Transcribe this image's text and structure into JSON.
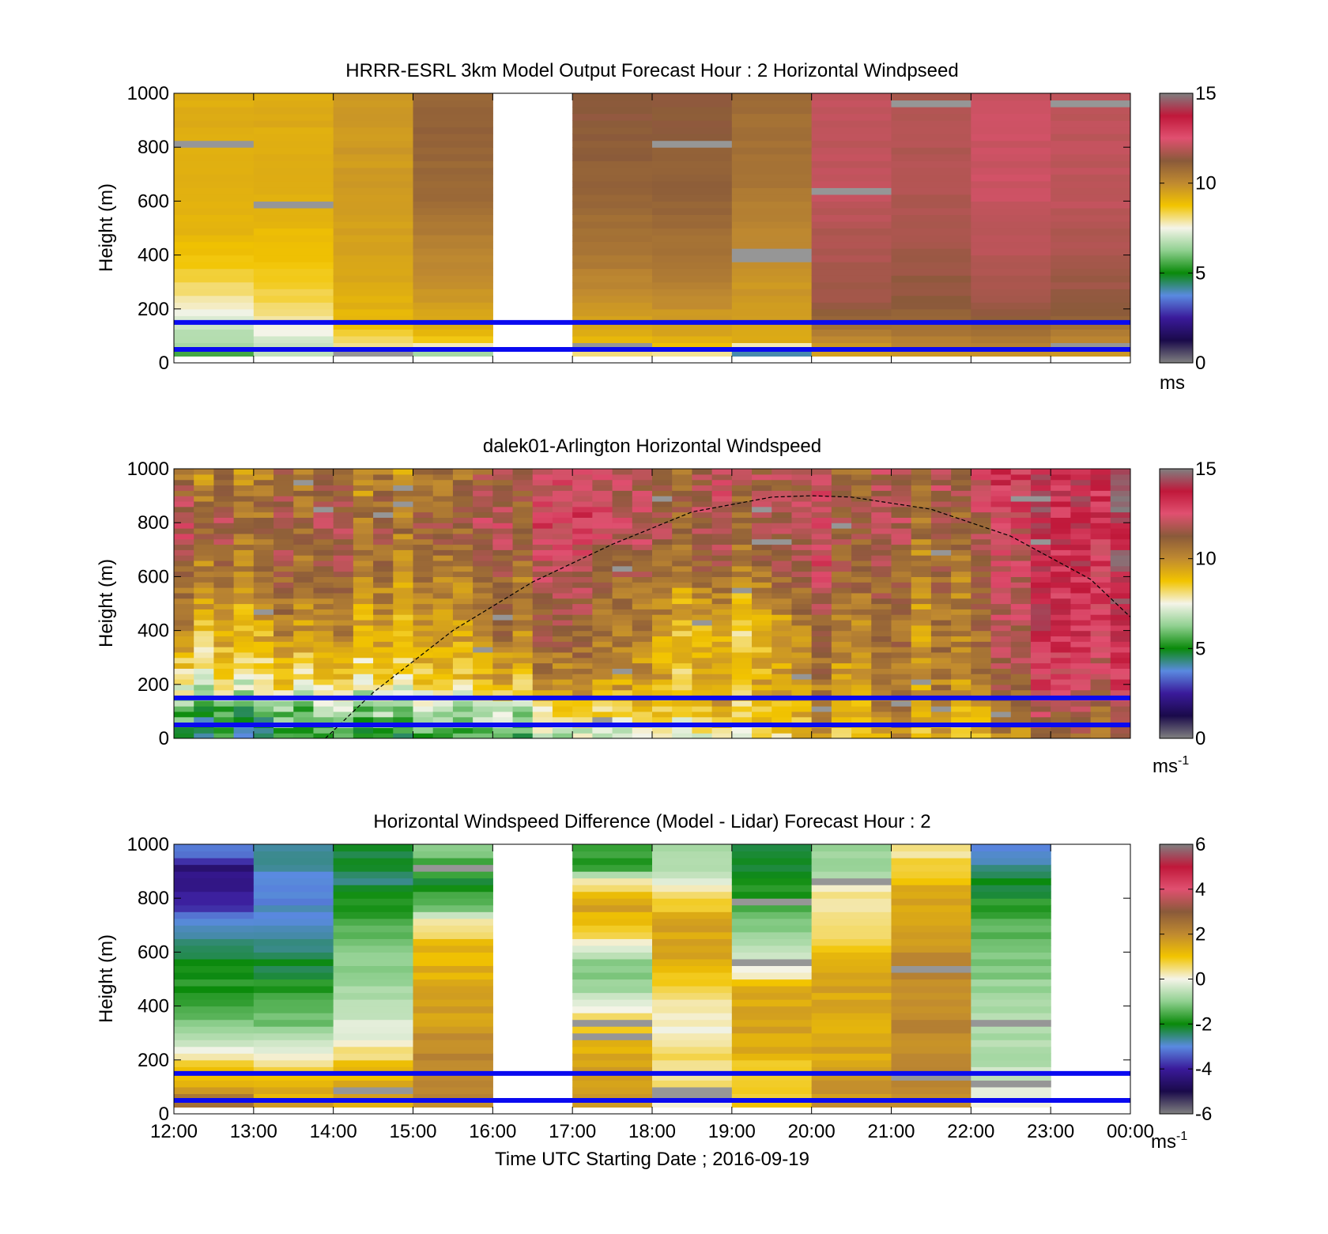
{
  "figure": {
    "xlabel": "Time UTC  Starting Date ; 2016-09-19",
    "x_ticks": [
      "12:00",
      "13:00",
      "14:00",
      "15:00",
      "16:00",
      "17:00",
      "18:00",
      "19:00",
      "20:00",
      "21:00",
      "22:00",
      "23:00",
      "00:00"
    ],
    "ylabel": "Height (m)",
    "y_ticks": [
      "0",
      "200",
      "400",
      "600",
      "800",
      "1000"
    ]
  },
  "chart_data": [
    {
      "type": "heatmap",
      "title": "HRRR-ESRL 3km Model Output   Forecast Hour : 2 Horizontal Windpseed",
      "xlabel": "",
      "ylabel": "Height (m)",
      "x_range": [
        "12:00",
        "00:00"
      ],
      "ylim": [
        0,
        1000
      ],
      "colorbar": {
        "min": 0,
        "max": 15,
        "ticks": [
          "0",
          "5",
          "10",
          "15"
        ],
        "unit": "ms",
        "unit_sup": "",
        "colors": [
          "#808080",
          "#1a0a4a",
          "#3a1a9a",
          "#5a8ae0",
          "#0a8a0a",
          "#90d090",
          "#f4f4e8",
          "#f2c400",
          "#c08a30",
          "#8a5a3a",
          "#e05070",
          "#c0183a",
          "#808080"
        ]
      },
      "hours": [
        "12:00",
        "13:00",
        "14:00",
        "15:00",
        "16:00",
        "17:00",
        "18:00",
        "19:00",
        "20:00",
        "21:00",
        "22:00",
        "23:00"
      ],
      "column_profiles_ms": [
        [
          [
            25,
            5.5
          ],
          [
            50,
            6.5
          ],
          [
            100,
            6.8
          ],
          [
            160,
            7.2
          ],
          [
            210,
            7.8
          ],
          [
            300,
            8.4
          ],
          [
            450,
            9.0
          ],
          [
            700,
            9.2
          ],
          [
            1000,
            9.3
          ]
        ],
        [
          [
            25,
            6.8
          ],
          [
            60,
            7.0
          ],
          [
            120,
            7.6
          ],
          [
            200,
            8.2
          ],
          [
            350,
            8.8
          ],
          [
            600,
            9.2
          ],
          [
            1000,
            9.3
          ]
        ],
        [
          [
            25,
            7.6
          ],
          [
            80,
            8.4
          ],
          [
            150,
            9.0
          ],
          [
            300,
            9.4
          ],
          [
            600,
            9.6
          ],
          [
            1000,
            9.7
          ]
        ],
        [
          [
            25,
            6.5
          ],
          [
            80,
            9.0
          ],
          [
            200,
            9.6
          ],
          [
            400,
            10.2
          ],
          [
            600,
            10.8
          ],
          [
            800,
            11.0
          ],
          [
            1000,
            11.0
          ]
        ],
        null,
        [
          [
            25,
            8.0
          ],
          [
            50,
            9.0
          ],
          [
            150,
            9.4
          ],
          [
            300,
            10.2
          ],
          [
            600,
            11.0
          ],
          [
            1000,
            11.4
          ]
        ],
        [
          [
            25,
            8.0
          ],
          [
            60,
            9.2
          ],
          [
            150,
            9.6
          ],
          [
            300,
            10.4
          ],
          [
            600,
            11.0
          ],
          [
            1000,
            11.3
          ]
        ],
        [
          [
            25,
            4.0
          ],
          [
            60,
            9.2
          ],
          [
            200,
            9.6
          ],
          [
            400,
            10.0
          ],
          [
            700,
            10.6
          ],
          [
            1000,
            10.8
          ]
        ],
        [
          [
            25,
            9.6
          ],
          [
            60,
            9.8
          ],
          [
            200,
            11.5
          ],
          [
            600,
            12.0
          ],
          [
            1000,
            12.0
          ]
        ],
        [
          [
            25,
            9.8
          ],
          [
            60,
            10.2
          ],
          [
            200,
            11.3
          ],
          [
            600,
            11.8
          ],
          [
            1000,
            11.8
          ]
        ],
        [
          [
            25,
            9.8
          ],
          [
            60,
            10.4
          ],
          [
            200,
            11.6
          ],
          [
            600,
            12.2
          ],
          [
            1000,
            12.2
          ]
        ],
        [
          [
            25,
            9.7
          ],
          [
            60,
            10.1
          ],
          [
            200,
            11.4
          ],
          [
            600,
            12.0
          ],
          [
            1000,
            12.0
          ]
        ]
      ],
      "reference_lines_m": [
        150,
        50
      ],
      "reference_line_color": "#0a0af0"
    },
    {
      "type": "heatmap",
      "title": "dalek01-Arlington  Horizontal Windspeed",
      "xlabel": "",
      "ylabel": "Height (m)",
      "x_range": [
        "12:00",
        "00:00"
      ],
      "ylim": [
        0,
        1000
      ],
      "colorbar": {
        "min": 0,
        "max": 15,
        "ticks": [
          "0",
          "5",
          "10",
          "15"
        ],
        "unit": "ms",
        "unit_sup": "-1",
        "colors": [
          "#808080",
          "#1a0a4a",
          "#3a1a9a",
          "#5a8ae0",
          "#0a8a0a",
          "#90d090",
          "#f4f4e8",
          "#f2c400",
          "#c08a30",
          "#8a5a3a",
          "#e05070",
          "#c0183a",
          "#808080"
        ]
      },
      "hour_anchor_profiles_ms": [
        [
          [
            20,
            5.0
          ],
          [
            100,
            5.2
          ],
          [
            200,
            7.5
          ],
          [
            400,
            9.5
          ],
          [
            600,
            10.5
          ],
          [
            800,
            12.0
          ],
          [
            1000,
            10.0
          ]
        ],
        [
          [
            20,
            5.0
          ],
          [
            100,
            5.5
          ],
          [
            200,
            8.0
          ],
          [
            400,
            9.5
          ],
          [
            600,
            10.5
          ],
          [
            800,
            11.0
          ],
          [
            1000,
            10.5
          ]
        ],
        [
          [
            20,
            5.2
          ],
          [
            100,
            6.0
          ],
          [
            200,
            8.0
          ],
          [
            400,
            9.8
          ],
          [
            600,
            10.6
          ],
          [
            800,
            11.2
          ],
          [
            1000,
            10.0
          ]
        ],
        [
          [
            20,
            5.5
          ],
          [
            100,
            6.5
          ],
          [
            200,
            8.2
          ],
          [
            400,
            9.0
          ],
          [
            600,
            10.0
          ],
          [
            800,
            11.0
          ],
          [
            1000,
            10.2
          ]
        ],
        [
          [
            20,
            5.8
          ],
          [
            100,
            7.0
          ],
          [
            200,
            9.0
          ],
          [
            400,
            10.5
          ],
          [
            600,
            11.0
          ],
          [
            800,
            12.0
          ],
          [
            1000,
            11.2
          ]
        ],
        [
          [
            20,
            6.5
          ],
          [
            100,
            8.0
          ],
          [
            200,
            9.5
          ],
          [
            400,
            10.8
          ],
          [
            600,
            11.2
          ],
          [
            800,
            12.5
          ],
          [
            1000,
            12.0
          ]
        ],
        [
          [
            20,
            7.0
          ],
          [
            100,
            8.5
          ],
          [
            200,
            9.2
          ],
          [
            400,
            9.5
          ],
          [
            600,
            10.5
          ],
          [
            800,
            11.5
          ],
          [
            1000,
            11.0
          ]
        ],
        [
          [
            20,
            8.0
          ],
          [
            100,
            9.0
          ],
          [
            200,
            9.4
          ],
          [
            400,
            8.5
          ],
          [
            600,
            10.5
          ],
          [
            800,
            11.5
          ],
          [
            1000,
            12.0
          ]
        ],
        [
          [
            20,
            9.0
          ],
          [
            100,
            9.4
          ],
          [
            200,
            9.8
          ],
          [
            400,
            10.5
          ],
          [
            600,
            11.8
          ],
          [
            800,
            12.0
          ],
          [
            1000,
            11.5
          ]
        ],
        [
          [
            20,
            9.2
          ],
          [
            100,
            9.6
          ],
          [
            200,
            10.0
          ],
          [
            400,
            10.0
          ],
          [
            600,
            10.4
          ],
          [
            800,
            11.0
          ],
          [
            1000,
            11.2
          ]
        ],
        [
          [
            20,
            9.4
          ],
          [
            100,
            9.8
          ],
          [
            200,
            10.5
          ],
          [
            400,
            11.0
          ],
          [
            600,
            11.2
          ],
          [
            800,
            11.8
          ],
          [
            1000,
            13.0
          ]
        ],
        [
          [
            20,
            11.5
          ],
          [
            100,
            12.0
          ],
          [
            200,
            12.8
          ],
          [
            400,
            13.5
          ],
          [
            600,
            13.5
          ],
          [
            800,
            13.8
          ],
          [
            1000,
            13.6
          ]
        ],
        [
          [
            20,
            10.5
          ],
          [
            100,
            11.0
          ],
          [
            200,
            12.0
          ],
          [
            400,
            12.8
          ],
          [
            600,
            13.2
          ],
          [
            800,
            13.5
          ],
          [
            1000,
            14.0
          ]
        ]
      ],
      "mixing_height_curve_m": [
        [
          13.9,
          0
        ],
        [
          14.5,
          170
        ],
        [
          15.5,
          400
        ],
        [
          16.5,
          580
        ],
        [
          17.5,
          720
        ],
        [
          18.5,
          840
        ],
        [
          19.5,
          895
        ],
        [
          20.0,
          900
        ],
        [
          20.5,
          895
        ],
        [
          21.5,
          850
        ],
        [
          22.5,
          750
        ],
        [
          23.5,
          590
        ],
        [
          24.0,
          450
        ]
      ],
      "reference_lines_m": [
        150,
        50
      ],
      "reference_line_color": "#0a0af0"
    },
    {
      "type": "heatmap",
      "title": "Horizontal Windspeed Difference (Model - Lidar) Forecast Hour : 2",
      "xlabel": "Time UTC  Starting Date ; 2016-09-19",
      "ylabel": "Height (m)",
      "x_range": [
        "12:00",
        "00:00"
      ],
      "ylim": [
        0,
        1000
      ],
      "colorbar": {
        "min": -6,
        "max": 6,
        "ticks": [
          "-6",
          "-4",
          "-2",
          "0",
          "2",
          "4",
          "6"
        ],
        "unit": "ms",
        "unit_sup": "-1",
        "colors": [
          "#808080",
          "#1a0a4a",
          "#3a1a9a",
          "#5a8ae0",
          "#0a8a0a",
          "#90d090",
          "#f4f4e8",
          "#f2c400",
          "#c08a30",
          "#8a5a3a",
          "#e05070",
          "#c0183a",
          "#808080"
        ]
      },
      "hours": [
        "12:00",
        "13:00",
        "14:00",
        "15:00",
        "16:00",
        "17:00",
        "18:00",
        "19:00",
        "20:00",
        "21:00",
        "22:00",
        "23:00"
      ],
      "column_profiles_ms": [
        [
          [
            25,
            2.5
          ],
          [
            100,
            1.5
          ],
          [
            200,
            0.5
          ],
          [
            300,
            -1.0
          ],
          [
            500,
            -2.0
          ],
          [
            700,
            -3.0
          ],
          [
            760,
            -4.0
          ],
          [
            900,
            -4.5
          ],
          [
            950,
            -3.0
          ],
          [
            1000,
            -3.0
          ]
        ],
        [
          [
            25,
            1.5
          ],
          [
            100,
            1.2
          ],
          [
            180,
            0.5
          ],
          [
            300,
            -1.0
          ],
          [
            500,
            -2.0
          ],
          [
            700,
            -3.0
          ],
          [
            850,
            -3.0
          ],
          [
            1000,
            -2.5
          ]
        ],
        [
          [
            25,
            1.5
          ],
          [
            150,
            1.2
          ],
          [
            250,
            0.0
          ],
          [
            500,
            -0.8
          ],
          [
            700,
            -1.5
          ],
          [
            850,
            -2.5
          ],
          [
            1000,
            -2.0
          ]
        ],
        [
          [
            25,
            2.0
          ],
          [
            200,
            2.0
          ],
          [
            400,
            1.5
          ],
          [
            600,
            1.2
          ],
          [
            680,
            0.5
          ],
          [
            750,
            -1.0
          ],
          [
            850,
            -2.0
          ],
          [
            1000,
            -1.0
          ]
        ],
        null,
        [
          [
            25,
            1.8
          ],
          [
            200,
            1.6
          ],
          [
            350,
            0.5
          ],
          [
            450,
            -1.0
          ],
          [
            550,
            -1.0
          ],
          [
            650,
            0.5
          ],
          [
            750,
            1.5
          ],
          [
            850,
            0.5
          ],
          [
            900,
            -1.5
          ],
          [
            1000,
            -2.0
          ]
        ],
        [
          [
            25,
            0.3
          ],
          [
            150,
            0.6
          ],
          [
            300,
            0.2
          ],
          [
            450,
            0.5
          ],
          [
            550,
            1.5
          ],
          [
            700,
            1.5
          ],
          [
            800,
            0.3
          ],
          [
            900,
            -0.5
          ],
          [
            1000,
            -1.0
          ]
        ],
        [
          [
            25,
            1.0
          ],
          [
            150,
            0.8
          ],
          [
            250,
            1.5
          ],
          [
            450,
            1.5
          ],
          [
            500,
            0.0
          ],
          [
            650,
            -1.0
          ],
          [
            850,
            -2.0
          ],
          [
            1000,
            -2.5
          ]
        ],
        [
          [
            25,
            1.8
          ],
          [
            200,
            1.5
          ],
          [
            500,
            1.5
          ],
          [
            650,
            0.5
          ],
          [
            800,
            0.3
          ],
          [
            900,
            -0.8
          ],
          [
            1000,
            -1.0
          ]
        ],
        [
          [
            25,
            2.0
          ],
          [
            500,
            2.0
          ],
          [
            800,
            1.5
          ],
          [
            950,
            0.5
          ],
          [
            1000,
            0.0
          ]
        ],
        [
          [
            25,
            0.0
          ],
          [
            100,
            -0.5
          ],
          [
            400,
            -0.8
          ],
          [
            700,
            -1.5
          ],
          [
            900,
            -2.5
          ],
          [
            1000,
            -3.0
          ]
        ],
        null
      ],
      "reference_lines_m": [
        150,
        50
      ],
      "reference_line_color": "#0a0af0"
    }
  ]
}
